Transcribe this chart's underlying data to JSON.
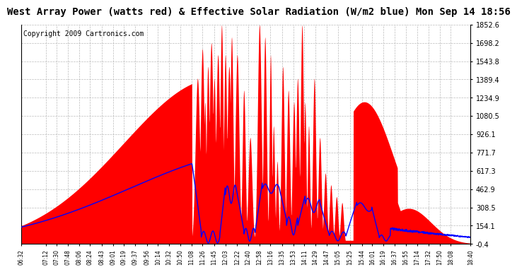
{
  "title": "West Array Power (watts red) & Effective Solar Radiation (W/m2 blue) Mon Sep 14 18:56",
  "copyright": "Copyright 2009 Cartronics.com",
  "title_fontsize": 10,
  "copyright_fontsize": 7,
  "background_color": "#ffffff",
  "plot_bg_color": "#ffffff",
  "grid_color": "#aaaaaa",
  "red_color": "#ff0000",
  "blue_color": "#0000ff",
  "yticks": [
    -0.4,
    154.1,
    308.5,
    462.9,
    617.3,
    771.7,
    926.1,
    1080.5,
    1234.9,
    1389.4,
    1543.8,
    1698.2,
    1852.6
  ],
  "ymin": -0.4,
  "ymax": 1852.6,
  "xtick_labels": [
    "06:32",
    "07:12",
    "07:30",
    "07:48",
    "08:06",
    "08:24",
    "08:43",
    "09:01",
    "09:19",
    "09:37",
    "09:56",
    "10:14",
    "10:32",
    "10:50",
    "11:08",
    "11:26",
    "11:45",
    "12:03",
    "12:22",
    "12:40",
    "12:58",
    "13:16",
    "13:35",
    "13:53",
    "14:11",
    "14:29",
    "14:47",
    "15:05",
    "15:25",
    "15:44",
    "16:01",
    "16:19",
    "16:37",
    "16:55",
    "17:14",
    "17:32",
    "17:50",
    "18:08",
    "18:40"
  ]
}
